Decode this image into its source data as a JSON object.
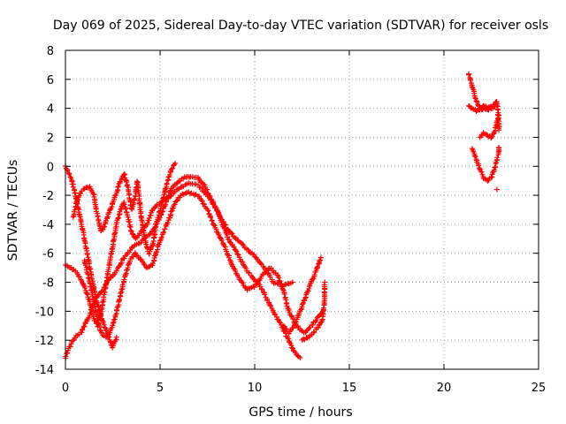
{
  "chart_data": {
    "type": "scatter",
    "title": "Day 069 of 2025, Sidereal Day-to-day VTEC variation (SDTVAR) for receiver osls",
    "xlabel": "GPS time / hours",
    "ylabel": "SDTVAR / TECUs",
    "xlim": [
      0,
      25
    ],
    "ylim": [
      -14,
      8
    ],
    "x_ticks": [
      0,
      5,
      10,
      15,
      20,
      25
    ],
    "y_ticks": [
      -14,
      -12,
      -10,
      -8,
      -6,
      -4,
      -2,
      0,
      2,
      4,
      6,
      8
    ],
    "x_tick_labels": [
      "0",
      "5",
      "10",
      "15",
      "20",
      "25"
    ],
    "y_tick_labels": [
      "-14",
      "-12",
      "-10",
      "-8",
      "-6",
      "-4",
      "-2",
      "0",
      "2",
      "4",
      "6",
      "8"
    ],
    "grid": true,
    "marker": "+",
    "color": "#ff0000",
    "series": [
      {
        "name": "osls",
        "tracks": [
          [
            [
              0.0,
              0.0
            ],
            [
              0.3,
              -0.8
            ],
            [
              0.5,
              -1.8
            ],
            [
              0.7,
              -3.0
            ],
            [
              1.0,
              -5.0
            ],
            [
              1.3,
              -7.0
            ],
            [
              1.6,
              -9.0
            ],
            [
              1.9,
              -10.5
            ],
            [
              2.2,
              -11.5
            ],
            [
              2.5,
              -12.5
            ],
            [
              2.7,
              -11.8
            ]
          ],
          [
            [
              0.0,
              -6.8
            ],
            [
              0.3,
              -7.0
            ],
            [
              0.6,
              -7.3
            ],
            [
              0.9,
              -8.0
            ],
            [
              1.2,
              -9.0
            ],
            [
              1.5,
              -10.5
            ],
            [
              1.7,
              -11.0
            ],
            [
              1.9,
              -10.0
            ],
            [
              2.1,
              -8.5
            ],
            [
              2.3,
              -7.0
            ],
            [
              2.5,
              -5.5
            ],
            [
              2.7,
              -4.0
            ],
            [
              2.9,
              -3.0
            ],
            [
              3.1,
              -2.5
            ],
            [
              3.3,
              -3.5
            ],
            [
              3.5,
              -4.5
            ],
            [
              3.7,
              -5.0
            ],
            [
              4.0,
              -4.5
            ],
            [
              4.3,
              -4.0
            ],
            [
              4.6,
              -3.0
            ],
            [
              5.0,
              -2.5
            ],
            [
              5.3,
              -2.2
            ],
            [
              5.6,
              -2.0
            ],
            [
              6.0,
              -1.5
            ],
            [
              6.5,
              -1.2
            ],
            [
              7.0,
              -1.3
            ],
            [
              7.5,
              -2.0
            ],
            [
              8.0,
              -3.0
            ],
            [
              8.5,
              -4.2
            ],
            [
              9.0,
              -5.0
            ],
            [
              9.5,
              -5.6
            ],
            [
              10.0,
              -6.2
            ],
            [
              10.5,
              -7.0
            ],
            [
              11.0,
              -8.0
            ],
            [
              11.5,
              -8.2
            ],
            [
              12.0,
              -8.0
            ]
          ],
          [
            [
              0.0,
              -13.2
            ],
            [
              0.2,
              -12.5
            ],
            [
              0.5,
              -11.8
            ],
            [
              0.8,
              -11.5
            ],
            [
              1.0,
              -11.0
            ],
            [
              1.2,
              -10.5
            ],
            [
              1.5,
              -9.5
            ],
            [
              1.7,
              -9.0
            ],
            [
              2.0,
              -8.5
            ],
            [
              2.2,
              -8.0
            ],
            [
              2.5,
              -7.5
            ],
            [
              2.8,
              -7.0
            ],
            [
              3.0,
              -6.5
            ],
            [
              3.3,
              -6.0
            ],
            [
              3.6,
              -5.5
            ],
            [
              4.0,
              -5.2
            ],
            [
              4.3,
              -4.8
            ],
            [
              4.6,
              -4.5
            ],
            [
              5.0,
              -3.5
            ],
            [
              5.3,
              -2.5
            ],
            [
              5.6,
              -1.5
            ],
            [
              6.0,
              -1.0
            ],
            [
              6.3,
              -0.8
            ],
            [
              6.6,
              -0.7
            ],
            [
              7.0,
              -0.8
            ],
            [
              7.3,
              -1.2
            ],
            [
              7.6,
              -2.0
            ],
            [
              8.0,
              -3.0
            ],
            [
              8.3,
              -4.0
            ],
            [
              8.6,
              -5.0
            ],
            [
              9.0,
              -5.8
            ],
            [
              9.3,
              -6.5
            ],
            [
              9.6,
              -7.2
            ],
            [
              10.0,
              -7.8
            ],
            [
              10.3,
              -8.3
            ],
            [
              10.6,
              -9.0
            ],
            [
              10.9,
              -9.8
            ],
            [
              11.2,
              -10.5
            ],
            [
              11.5,
              -11.2
            ],
            [
              11.8,
              -12.0
            ],
            [
              12.1,
              -12.8
            ],
            [
              12.4,
              -13.2
            ]
          ],
          [
            [
              0.4,
              -3.5
            ],
            [
              0.6,
              -2.5
            ],
            [
              0.8,
              -1.8
            ],
            [
              1.0,
              -1.5
            ],
            [
              1.3,
              -1.4
            ],
            [
              1.5,
              -2.0
            ],
            [
              1.7,
              -3.5
            ],
            [
              1.9,
              -4.5
            ],
            [
              2.1,
              -4.0
            ],
            [
              2.3,
              -3.2
            ],
            [
              2.5,
              -2.5
            ],
            [
              2.7,
              -1.8
            ],
            [
              2.9,
              -1.0
            ],
            [
              3.1,
              -0.5
            ],
            [
              3.3,
              -1.5
            ],
            [
              3.5,
              -3.0
            ],
            [
              3.7,
              -2.0
            ],
            [
              3.8,
              -1.0
            ],
            [
              4.0,
              -3.5
            ],
            [
              4.2,
              -5.0
            ],
            [
              4.4,
              -6.0
            ],
            [
              4.6,
              -5.5
            ],
            [
              4.8,
              -4.0
            ],
            [
              5.0,
              -3.0
            ],
            [
              5.2,
              -2.0
            ],
            [
              5.4,
              -1.0
            ],
            [
              5.6,
              -0.2
            ],
            [
              5.8,
              0.2
            ]
          ],
          [
            [
              1.0,
              -6.5
            ],
            [
              1.3,
              -8.0
            ],
            [
              1.6,
              -10.0
            ],
            [
              1.9,
              -11.5
            ],
            [
              2.2,
              -11.8
            ],
            [
              2.5,
              -11.0
            ],
            [
              2.8,
              -9.5
            ],
            [
              3.1,
              -7.8
            ],
            [
              3.4,
              -6.5
            ],
            [
              3.7,
              -6.0
            ],
            [
              4.0,
              -6.5
            ],
            [
              4.3,
              -7.0
            ],
            [
              4.6,
              -6.8
            ],
            [
              4.9,
              -5.5
            ],
            [
              5.2,
              -4.5
            ],
            [
              5.5,
              -3.5
            ],
            [
              5.8,
              -2.5
            ],
            [
              6.1,
              -2.0
            ],
            [
              6.5,
              -1.8
            ],
            [
              7.0,
              -2.0
            ],
            [
              7.5,
              -3.0
            ],
            [
              8.0,
              -4.5
            ],
            [
              8.4,
              -5.5
            ],
            [
              8.8,
              -6.8
            ],
            [
              9.2,
              -7.8
            ],
            [
              9.6,
              -8.5
            ],
            [
              10.0,
              -8.3
            ],
            [
              10.4,
              -7.5
            ],
            [
              10.8,
              -7.0
            ],
            [
              11.2,
              -7.5
            ],
            [
              11.5,
              -8.5
            ],
            [
              11.8,
              -10.0
            ],
            [
              12.2,
              -11.0
            ],
            [
              12.6,
              -11.5
            ],
            [
              13.0,
              -11.0
            ],
            [
              13.3,
              -10.5
            ],
            [
              13.6,
              -10.0
            ]
          ],
          [
            [
              11.5,
              -11.0
            ],
            [
              11.8,
              -11.5
            ],
            [
              12.1,
              -11.0
            ],
            [
              12.4,
              -10.0
            ],
            [
              12.7,
              -9.0
            ],
            [
              13.0,
              -8.0
            ],
            [
              13.3,
              -7.0
            ],
            [
              13.5,
              -6.3
            ]
          ],
          [
            [
              12.5,
              -12.0
            ],
            [
              12.8,
              -11.8
            ],
            [
              13.1,
              -11.5
            ],
            [
              13.4,
              -11.0
            ],
            [
              13.6,
              -10.5
            ],
            [
              13.7,
              -9.0
            ],
            [
              13.7,
              -8.0
            ]
          ],
          [
            [
              21.3,
              6.4
            ],
            [
              21.5,
              5.5
            ],
            [
              21.7,
              4.5
            ],
            [
              21.9,
              4.0
            ],
            [
              22.1,
              4.2
            ],
            [
              22.3,
              4.0
            ],
            [
              22.5,
              4.1
            ],
            [
              22.7,
              4.3
            ],
            [
              22.8,
              4.5
            ],
            [
              22.9,
              3.0
            ],
            [
              22.9,
              2.5
            ]
          ],
          [
            [
              21.3,
              4.2
            ],
            [
              21.5,
              4.0
            ],
            [
              21.7,
              3.8
            ],
            [
              21.9,
              3.9
            ],
            [
              22.1,
              4.0
            ],
            [
              22.3,
              3.9
            ],
            [
              22.5,
              4.0
            ],
            [
              22.7,
              4.1
            ]
          ],
          [
            [
              21.5,
              1.2
            ],
            [
              21.7,
              0.5
            ],
            [
              21.9,
              -0.2
            ],
            [
              22.1,
              -0.8
            ],
            [
              22.3,
              -1.0
            ],
            [
              22.5,
              -0.8
            ],
            [
              22.7,
              0.0
            ],
            [
              22.9,
              1.0
            ],
            [
              22.9,
              1.3
            ]
          ],
          [
            [
              21.9,
              2.0
            ],
            [
              22.1,
              2.3
            ],
            [
              22.3,
              2.1
            ],
            [
              22.5,
              2.0
            ],
            [
              22.7,
              2.5
            ],
            [
              22.9,
              3.5
            ]
          ],
          [
            [
              22.8,
              -1.6
            ]
          ]
        ]
      }
    ]
  }
}
